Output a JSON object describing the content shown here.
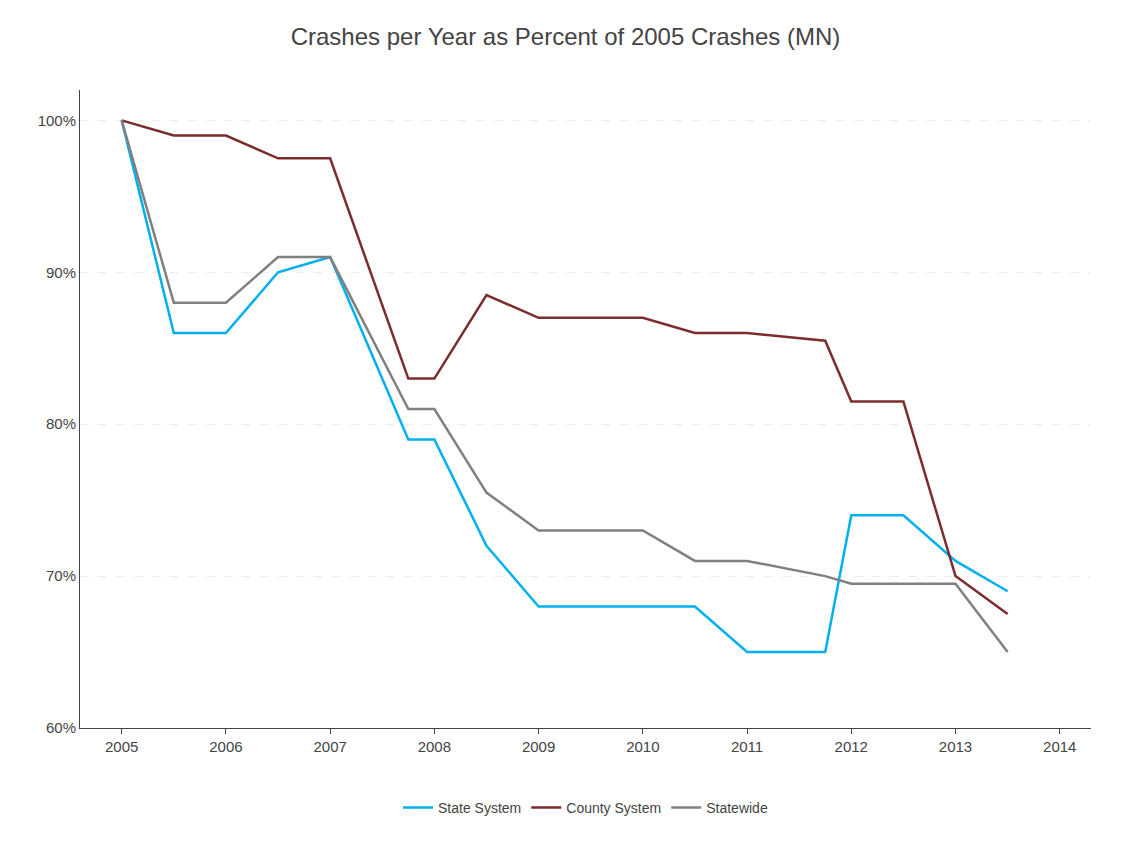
{
  "chart_data": {
    "type": "line",
    "title": "Crashes per Year as Percent of 2005 Crashes (MN)",
    "x": [
      2005,
      2005.5,
      2006,
      2006.5,
      2007,
      2007.75,
      2008,
      2008.5,
      2009,
      2009.5,
      2010,
      2010.5,
      2011,
      2011.75,
      2012,
      2012.5,
      2013,
      2013.5
    ],
    "series": [
      {
        "name": "State System",
        "color": "#00B0F0",
        "values": [
          100,
          86,
          86,
          90,
          91,
          79,
          79,
          72,
          68,
          68,
          68,
          68,
          65,
          65,
          74,
          74,
          71,
          69
        ]
      },
      {
        "name": "County System",
        "color": "#7B2C2C",
        "values": [
          100,
          99,
          99,
          97.5,
          97.5,
          83,
          83,
          88.5,
          87,
          87,
          87,
          86,
          86,
          85.5,
          81.5,
          81.5,
          70,
          67.5
        ]
      },
      {
        "name": "Statewide",
        "color": "#808080",
        "values": [
          100,
          88,
          88,
          91,
          91,
          81,
          81,
          75.5,
          73,
          73,
          73,
          71,
          71,
          70,
          69.5,
          69.5,
          69.5,
          65
        ]
      }
    ],
    "xlim": [
      2004.6,
      2014.3
    ],
    "xticks": [
      2005,
      2006,
      2007,
      2008,
      2009,
      2010,
      2011,
      2012,
      2013,
      2014
    ],
    "ylim": [
      60,
      102
    ],
    "yticks": [
      {
        "value": 60,
        "label": "60%"
      },
      {
        "value": 70,
        "label": "70%"
      },
      {
        "value": 80,
        "label": "80%"
      },
      {
        "value": 90,
        "label": "90%"
      },
      {
        "value": 100,
        "label": "100%"
      }
    ],
    "grid": true,
    "legend": "bottom"
  }
}
